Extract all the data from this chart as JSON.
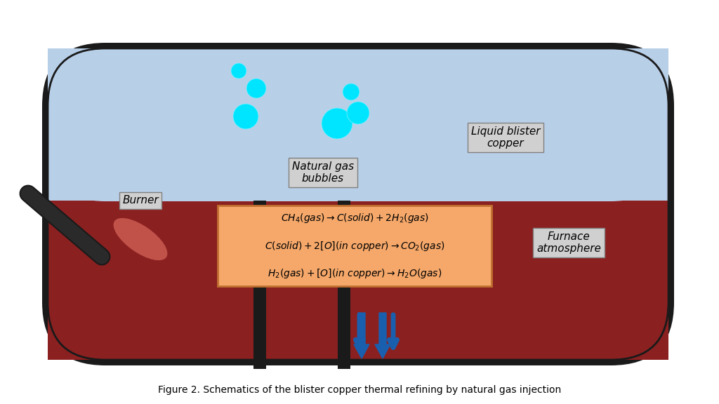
{
  "background_color": "#ffffff",
  "furnace_color": "#1a1a1a",
  "atmosphere_color": "#b8cfe8",
  "copper_color": "#8b2020",
  "burner_tube_color": "#1a1a1a",
  "burner_flame_color": "#c0524a",
  "bubble_color": "#00e5ff",
  "arrow_color": "#1a5fad",
  "box_fill": "#f5a86a",
  "box_edge": "#c07030",
  "label_box_fill": "#d0d0d0",
  "label_box_edge": "#808080",
  "pipe_color": "#1a1a1a",
  "title": "Figure 2. Schematics of the blister copper thermal refining by natural gas injection",
  "eq1": "$CH_4(gas) \\rightarrow C(solid) + 2H_2(gas)$",
  "eq2": "$C(solid) + 2[O](in\\ copper) \\rightarrow CO_2(gas)$",
  "eq3": "$H_2(gas) + [O](in\\ copper) \\rightarrow H_2O(gas)$",
  "label_burner": "Burner",
  "label_atmosphere": "Furnace\natmosphere",
  "label_bubbles": "Natural gas\nbubbles",
  "label_copper": "Liquid blister\ncopper"
}
